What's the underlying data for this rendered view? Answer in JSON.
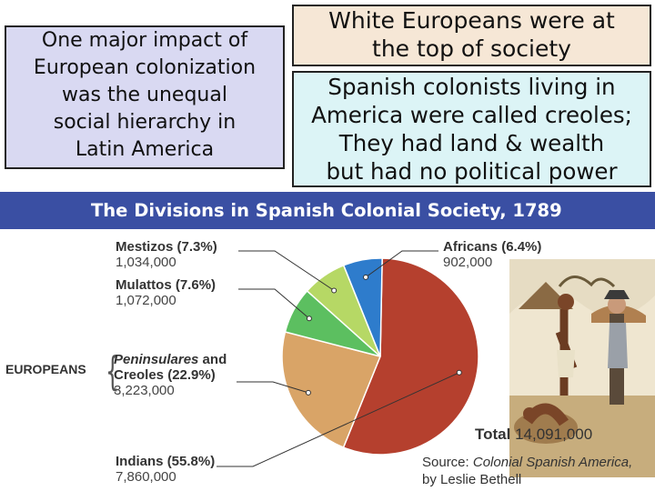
{
  "text_boxes": {
    "left": [
      "One major impact of",
      "European colonization",
      "was the unequal",
      "social hierarchy in",
      "Latin America"
    ],
    "top_right": [
      "White Europeans were at",
      "the top of society"
    ],
    "bottom_right": [
      "Spanish colonists living in",
      "America were called creoles;",
      "They had land & wealth",
      "but had no political power"
    ]
  },
  "chart_data": {
    "type": "pie",
    "title": "The Divisions in Spanish Colonial Society, 1789",
    "slices": [
      {
        "label": "Indians",
        "percent": 55.8,
        "count": "7,860,000",
        "color": "#b5402e"
      },
      {
        "label": "Peninsulares and Creoles",
        "percent": 22.9,
        "count": "3,223,000",
        "color": "#d9a467"
      },
      {
        "label": "Mulattos",
        "percent": 7.6,
        "count": "1,072,000",
        "color": "#5cbf60"
      },
      {
        "label": "Mestizos",
        "percent": 7.3,
        "count": "1,034,000",
        "color": "#b6d865"
      },
      {
        "label": "Africans",
        "percent": 6.4,
        "count": "902,000",
        "color": "#2e7ccc"
      }
    ],
    "labels": {
      "mestizos": {
        "name": "Mestizos",
        "pct": "(7.3%)",
        "count": "1,034,000"
      },
      "mulattos": {
        "name": "Mulattos",
        "pct": "(7.6%)",
        "count": "1,072,000"
      },
      "peninsulares": {
        "name1": "Peninsulares",
        "and": " and",
        "name2": "Creoles",
        "pct": "(22.9%)",
        "count": "3,223,000"
      },
      "indians": {
        "name": "Indians",
        "pct": "(55.8%)",
        "count": "7,860,000"
      },
      "africans": {
        "name": "Africans",
        "pct": "(6.4%)",
        "count": "902,000"
      }
    },
    "group_label": "EUROPEANS",
    "total_label": "Total",
    "total_value": "14,091,000",
    "source_label": "Source:",
    "source_title": "Colonial Spanish America,",
    "source_author": "by Leslie Bethell"
  }
}
